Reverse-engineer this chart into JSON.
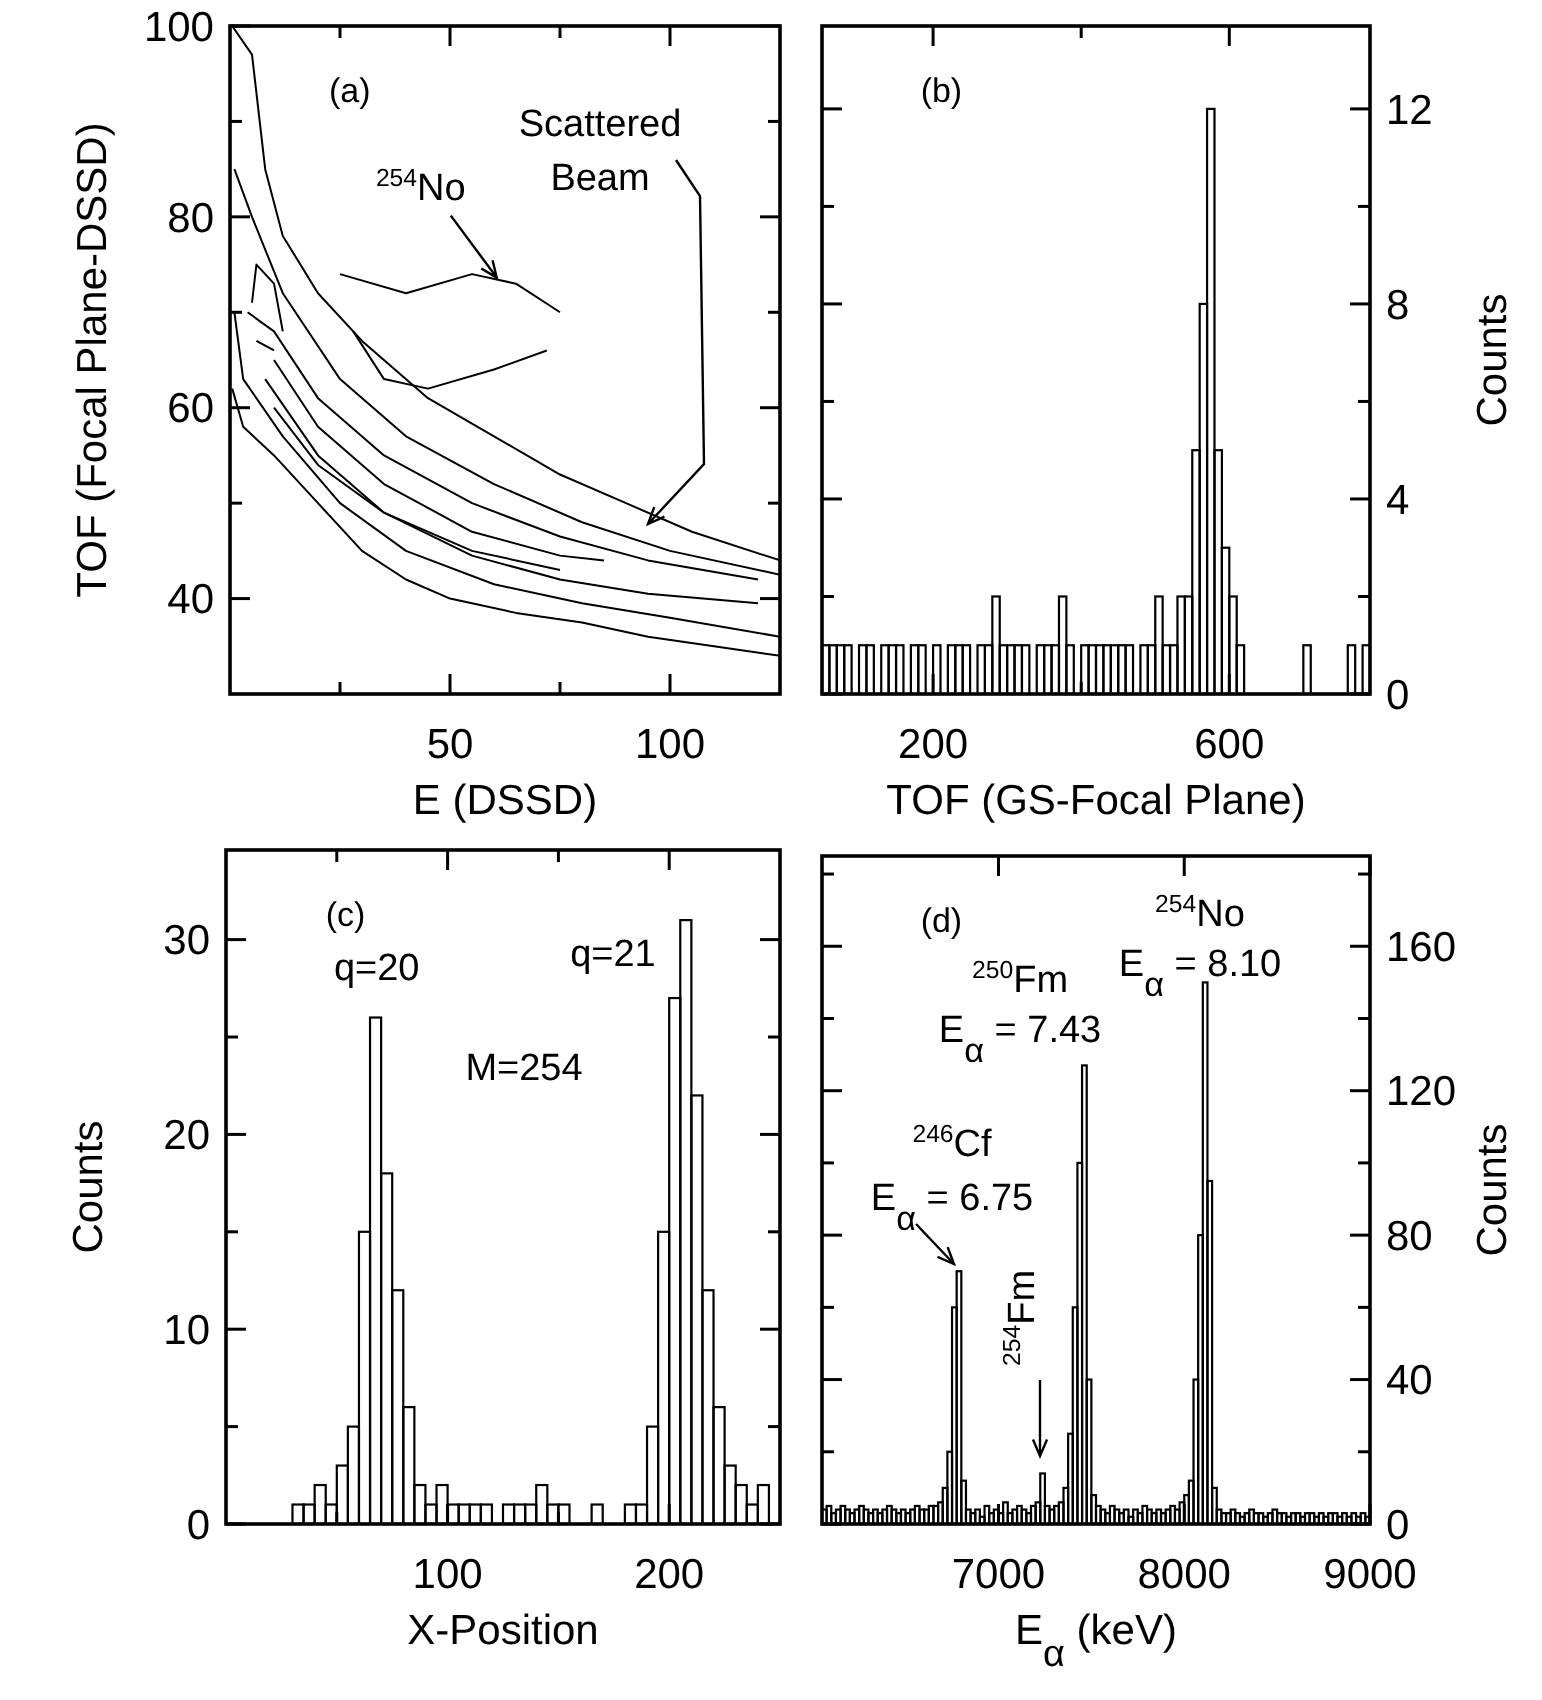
{
  "chart_data": [
    {
      "type": "line",
      "title": "(a)",
      "xlabel": "E (DSSD)",
      "ylabel": "TOF (Focal Plane-DSSD)",
      "xlim": [
        0,
        125
      ],
      "ylim": [
        30,
        100
      ],
      "xticks": [
        {
          "value": 25,
          "label": null
        },
        50,
        {
          "value": 75,
          "label": null
        },
        100
      ],
      "yticks": [
        40,
        {
          "value": 50,
          "label": null
        },
        60,
        {
          "value": 70,
          "label": null
        },
        80,
        {
          "value": 90,
          "label": null
        },
        100
      ],
      "series": [
        {
          "color": "#000000",
          "x": [
            0.5,
            5,
            8,
            12,
            20,
            30,
            45,
            60,
            75,
            90,
            105,
            125
          ],
          "values": [
            100,
            97,
            85,
            78,
            72,
            67,
            61,
            57,
            53,
            50,
            47,
            44
          ]
        },
        {
          "color": "#000000",
          "x": [
            0.5,
            3,
            10,
            20,
            30,
            40,
            50,
            65,
            80,
            95,
            110,
            125
          ],
          "values": [
            62,
            58,
            55,
            50,
            45,
            42,
            40,
            38.5,
            37.5,
            36,
            35,
            34
          ]
        },
        {
          "color": "#000000",
          "x": [
            1,
            5,
            12,
            25,
            40,
            60,
            80,
            100,
            125
          ],
          "values": [
            85,
            80,
            72,
            63,
            57,
            52,
            48,
            45,
            42.5
          ]
        },
        {
          "color": "#000000",
          "x": [
            1,
            3,
            12,
            25,
            40,
            60,
            80,
            100,
            125
          ],
          "values": [
            70,
            63,
            57,
            50,
            45,
            41.5,
            39.5,
            38,
            36
          ]
        },
        {
          "color": "#000000",
          "x": [
            4,
            10,
            20,
            35,
            55,
            75,
            95,
            120
          ],
          "values": [
            70,
            68,
            61,
            55,
            50,
            46.5,
            44,
            42
          ]
        },
        {
          "color": "#000000",
          "x": [
            8,
            20,
            35,
            55,
            75,
            95,
            120
          ],
          "values": [
            63,
            55,
            49,
            44.5,
            42,
            40.5,
            39.5
          ]
        },
        {
          "color": "#000000",
          "x": [
            10,
            20,
            35,
            55,
            75,
            85
          ],
          "values": [
            65,
            58,
            52,
            47,
            44.5,
            44
          ]
        },
        {
          "color": "#000000",
          "x": [
            10,
            20,
            35,
            55,
            75
          ],
          "values": [
            60,
            54,
            49,
            45,
            43
          ]
        },
        {
          "color": "#000000",
          "x": [
            5,
            6,
            10,
            12
          ],
          "values": [
            71,
            75,
            73,
            68
          ]
        },
        {
          "color": "#000000",
          "x": [
            6,
            10
          ],
          "values": [
            67,
            66
          ]
        },
        {
          "color": "#000000",
          "x": [
            25,
            40,
            55,
            65,
            75
          ],
          "values": [
            74,
            72,
            74,
            73,
            70
          ]
        },
        {
          "color": "#000000",
          "x": [
            28,
            35,
            45,
            60,
            72
          ],
          "values": [
            68,
            63,
            62,
            64,
            66
          ]
        }
      ],
      "annotations": [
        {
          "text": "$^{254}$No",
          "x": 62,
          "y": 73
        },
        "Scattered",
        "Beam"
      ]
    },
    {
      "type": "histogram",
      "title": "(b)",
      "xlabel": "TOF (GS-Focal Plane)",
      "y2label": "Counts",
      "xlim": [
        50,
        790
      ],
      "y2lim": [
        0,
        13.7
      ],
      "xticks": [
        200,
        {
          "value": 400,
          "label": null
        },
        600
      ],
      "y2ticks": [
        0,
        {
          "value": 2,
          "label": null
        },
        4,
        {
          "value": 6,
          "label": null
        },
        8,
        {
          "value": 10,
          "label": null
        },
        12
      ],
      "bins": [
        50,
        60,
        70,
        80,
        90,
        100,
        110,
        120,
        130,
        140,
        150,
        160,
        170,
        180,
        190,
        200,
        210,
        220,
        230,
        240,
        250,
        260,
        270,
        280,
        290,
        300,
        310,
        320,
        330,
        340,
        350,
        360,
        370,
        380,
        390,
        400,
        410,
        420,
        430,
        440,
        450,
        460,
        470,
        480,
        490,
        500,
        510,
        520,
        530,
        540,
        550,
        560,
        570,
        580,
        590,
        600,
        610,
        620,
        630,
        640,
        650,
        660,
        670,
        680,
        690,
        700,
        710,
        720,
        730,
        740,
        750,
        760,
        770,
        780,
        790
      ],
      "series": [
        {
          "color": "#000000",
          "axis": "y2",
          "values": [
            1,
            1,
            1,
            1,
            0,
            1,
            1,
            0,
            1,
            1,
            1,
            0,
            1,
            1,
            0,
            1,
            0,
            1,
            1,
            1,
            0,
            1,
            1,
            2,
            1,
            1,
            1,
            1,
            0,
            1,
            1,
            1,
            2,
            1,
            0,
            1,
            1,
            1,
            1,
            1,
            1,
            1,
            0,
            1,
            1,
            2,
            1,
            1,
            2,
            2,
            5,
            8,
            12,
            5,
            3,
            2,
            1,
            0,
            0,
            0,
            0,
            0,
            0,
            0,
            0,
            1,
            0,
            0,
            0,
            0,
            0,
            1,
            0,
            1
          ]
        }
      ]
    },
    {
      "type": "histogram",
      "title": "(c)",
      "xlabel": "X-Position",
      "ylabel": "Counts",
      "xlim": [
        0,
        250
      ],
      "ylim": [
        0,
        34.6
      ],
      "xticks": [
        {
          "value": 50,
          "label": null
        },
        100,
        {
          "value": 150,
          "label": null
        },
        200
      ],
      "yticks": [
        0,
        {
          "value": 5,
          "label": null
        },
        10,
        {
          "value": 15,
          "label": null
        },
        20,
        {
          "value": 25,
          "label": null
        },
        30
      ],
      "bins": [
        0,
        5,
        10,
        15,
        20,
        25,
        30,
        35,
        40,
        45,
        50,
        55,
        60,
        65,
        70,
        75,
        80,
        85,
        90,
        95,
        100,
        105,
        110,
        115,
        120,
        125,
        130,
        135,
        140,
        145,
        150,
        155,
        160,
        165,
        170,
        175,
        180,
        185,
        190,
        195,
        200,
        205,
        210,
        215,
        220,
        225,
        230,
        235,
        240,
        245,
        250
      ],
      "series": [
        {
          "color": "#000000",
          "values": [
            0,
            0,
            0,
            0,
            0,
            0,
            1,
            1,
            2,
            1,
            3,
            5,
            15,
            26,
            18,
            12,
            6,
            2,
            1,
            2,
            1,
            1,
            1,
            1,
            0,
            1,
            1,
            1,
            2,
            1,
            1,
            0,
            0,
            1,
            0,
            0,
            1,
            1,
            5,
            15,
            27,
            31,
            22,
            12,
            6,
            3,
            2,
            1,
            2,
            0
          ]
        }
      ],
      "annotations": [
        {
          "text": "q=20",
          "x": 68,
          "y": 26
        },
        {
          "text": "q=21",
          "x": 208,
          "y": 31
        },
        "M=254"
      ]
    },
    {
      "type": "histogram",
      "title": "(d)",
      "xlabel": "E$_{α}$ (keV)",
      "y2label": "Counts",
      "xlim": [
        6050,
        9000
      ],
      "y2lim": [
        0,
        185
      ],
      "xticks": [
        7000,
        8000,
        9000
      ],
      "y2ticks": [
        0,
        {
          "value": 20,
          "label": null
        },
        40,
        {
          "value": 60,
          "label": null
        },
        80,
        {
          "value": 100,
          "label": null
        },
        120,
        {
          "value": 140,
          "label": null
        },
        160,
        {
          "value": 180,
          "label": null
        }
      ],
      "bins": [
        6050,
        6075,
        6100,
        6125,
        6150,
        6175,
        6200,
        6225,
        6250,
        6275,
        6300,
        6325,
        6350,
        6375,
        6400,
        6425,
        6450,
        6475,
        6500,
        6525,
        6550,
        6575,
        6600,
        6625,
        6650,
        6675,
        6700,
        6725,
        6750,
        6775,
        6800,
        6825,
        6850,
        6875,
        6900,
        6925,
        6950,
        6975,
        7000,
        7025,
        7050,
        7075,
        7100,
        7125,
        7150,
        7175,
        7200,
        7225,
        7250,
        7275,
        7300,
        7325,
        7350,
        7375,
        7400,
        7425,
        7450,
        7475,
        7500,
        7525,
        7550,
        7575,
        7600,
        7625,
        7650,
        7675,
        7700,
        7725,
        7750,
        7775,
        7800,
        7825,
        7850,
        7875,
        7900,
        7925,
        7950,
        7975,
        8000,
        8025,
        8050,
        8075,
        8100,
        8125,
        8150,
        8175,
        8200,
        8225,
        8250,
        8275,
        8300,
        8325,
        8350,
        8375,
        8400,
        8425,
        8450,
        8475,
        8500,
        8525,
        8550,
        8575,
        8600,
        8625,
        8650,
        8675,
        8700,
        8725,
        8750,
        8775,
        8800,
        8825,
        8850,
        8875,
        8900,
        8925,
        8950,
        8975,
        9000
      ],
      "series": [
        {
          "color": "#000000",
          "axis": "y2",
          "values": [
            4,
            5,
            3,
            4,
            5,
            4,
            3,
            4,
            5,
            4,
            3,
            4,
            3,
            4,
            5,
            4,
            3,
            4,
            3,
            4,
            5,
            4,
            4,
            5,
            5,
            6,
            10,
            20,
            60,
            70,
            12,
            4,
            3,
            4,
            2,
            5,
            3,
            4,
            3,
            6,
            3,
            4,
            5,
            4,
            3,
            5,
            6,
            14,
            5,
            4,
            5,
            6,
            10,
            25,
            60,
            100,
            127,
            40,
            8,
            5,
            4,
            3,
            5,
            4,
            3,
            4,
            2,
            4,
            3,
            5,
            4,
            3,
            4,
            3,
            4,
            5,
            4,
            6,
            8,
            12,
            40,
            80,
            150,
            95,
            10,
            4,
            3,
            3,
            4,
            3,
            2,
            3,
            4,
            3,
            3,
            2,
            3,
            4,
            3,
            3,
            2,
            3,
            3,
            2,
            3,
            3,
            2,
            3,
            2,
            3,
            3,
            2,
            3,
            2,
            3,
            2,
            3,
            2
          ]
        }
      ],
      "annotations": [
        "$^{246}$Cf",
        "E$_{α}$ = 6.75",
        "$^{254}$Fm",
        "$^{250}$Fm",
        "E$_{α}$ = 7.43",
        "$^{254}$No",
        "E$_{α}$ = 8.10"
      ]
    }
  ]
}
